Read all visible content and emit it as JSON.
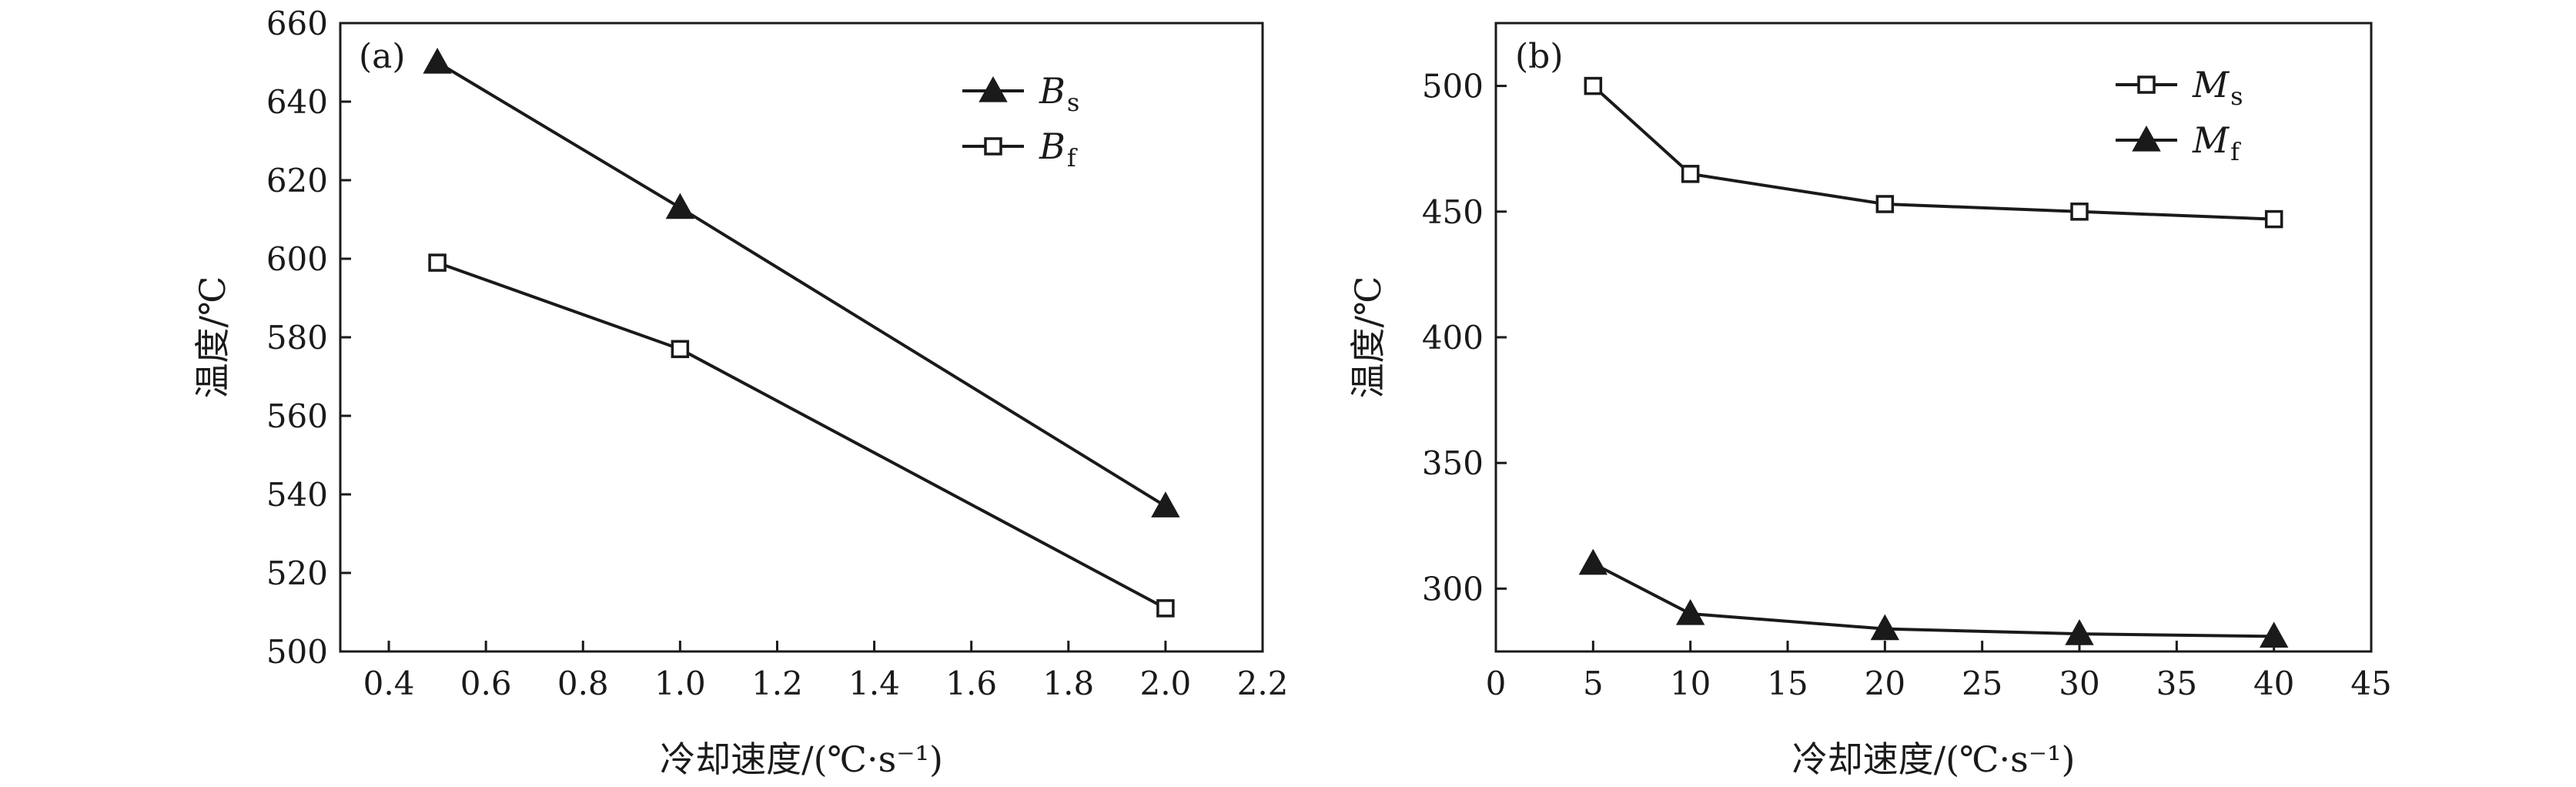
{
  "chart_data": [
    {
      "type": "line",
      "panel": "(a)",
      "xlabel": "冷却速度/(℃·s⁻¹)",
      "ylabel": "温度/℃",
      "xlim": [
        0.3,
        2.2
      ],
      "ylim": [
        500,
        660
      ],
      "xticks": [
        0.4,
        0.6,
        0.8,
        1.0,
        1.2,
        1.4,
        1.6,
        1.8,
        2.0,
        2.2
      ],
      "yticks": [
        500,
        520,
        540,
        560,
        580,
        600,
        620,
        640,
        660
      ],
      "legend": "top-right",
      "series": [
        {
          "name_main": "B",
          "name_sub": "s",
          "marker": "filled-triangle",
          "x": [
            0.5,
            1.0,
            2.0
          ],
          "y": [
            650,
            613,
            537
          ]
        },
        {
          "name_main": "B",
          "name_sub": "f",
          "marker": "open-square",
          "x": [
            0.5,
            1.0,
            2.0
          ],
          "y": [
            599,
            577,
            511
          ]
        }
      ]
    },
    {
      "type": "line",
      "panel": "(b)",
      "xlabel": "冷却速度/(℃·s⁻¹)",
      "ylabel": "温度/℃",
      "xlim": [
        0,
        45
      ],
      "ylim": [
        275,
        525
      ],
      "xticks": [
        0,
        5,
        10,
        15,
        20,
        25,
        30,
        35,
        40,
        45
      ],
      "yticks": [
        300,
        350,
        400,
        450,
        500
      ],
      "legend": "top-right",
      "series": [
        {
          "name_main": "M",
          "name_sub": "s",
          "marker": "open-square",
          "x": [
            5,
            10,
            20,
            30,
            40
          ],
          "y": [
            500,
            465,
            453,
            450,
            447
          ]
        },
        {
          "name_main": "M",
          "name_sub": "f",
          "marker": "filled-triangle",
          "x": [
            5,
            10,
            20,
            30,
            40
          ],
          "y": [
            310,
            290,
            284,
            282,
            281
          ]
        }
      ]
    }
  ]
}
